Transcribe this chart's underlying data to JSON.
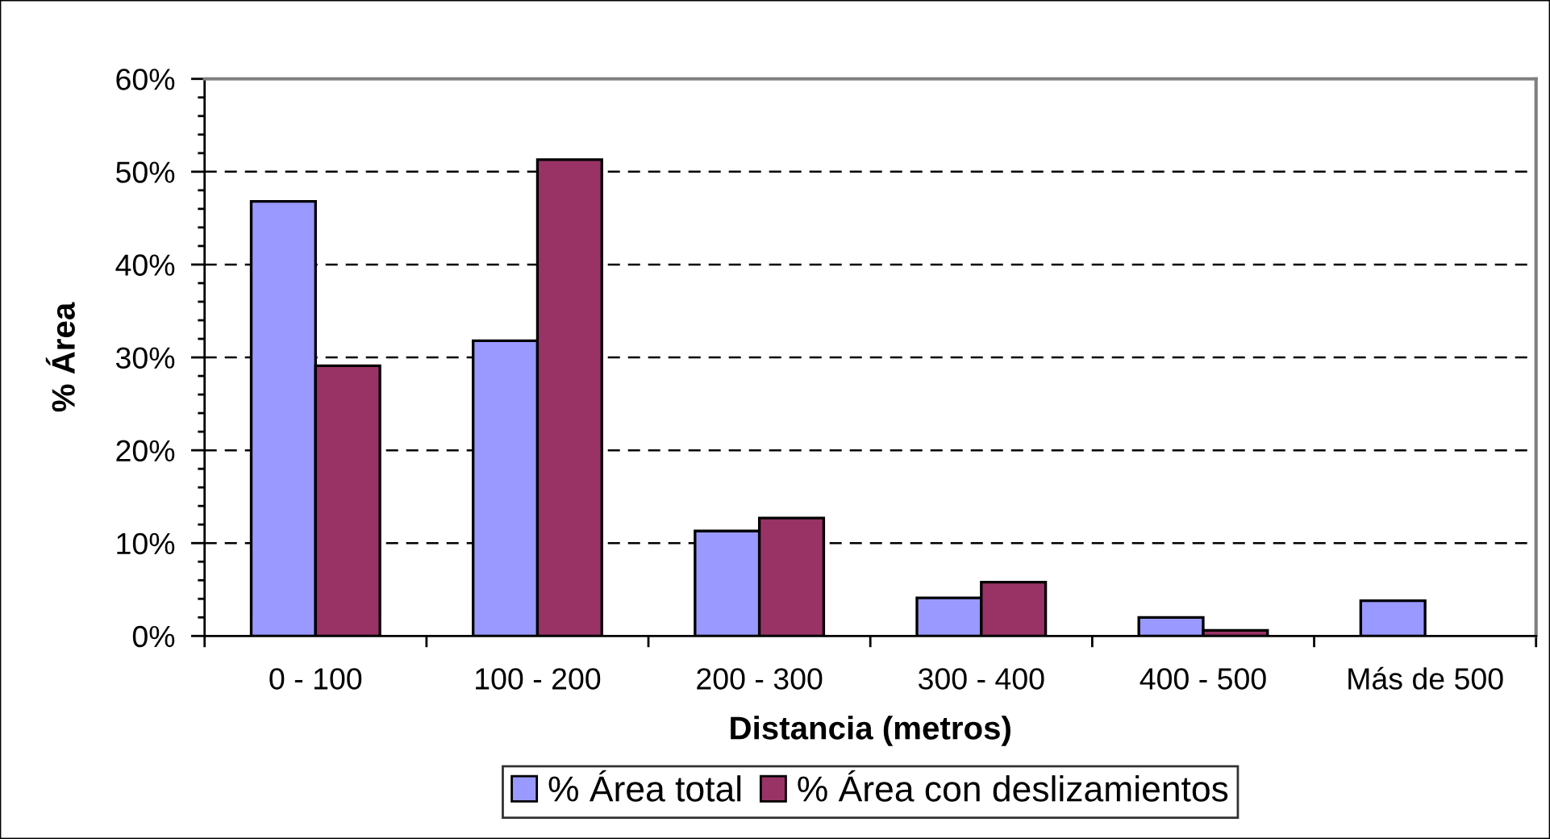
{
  "chart_data": {
    "type": "bar",
    "xlabel": "Distancia (metros)",
    "ylabel": "% Área",
    "categories": [
      "0 - 100",
      "100 - 200",
      "200 - 300",
      "300 - 400",
      "400 - 500",
      "Más de 500"
    ],
    "series": [
      {
        "name": "% Área total",
        "color": "#9999ff",
        "values": [
          46.8,
          31.8,
          11.3,
          4.1,
          2.0,
          3.8
        ]
      },
      {
        "name": "% Área con deslizamientos",
        "color": "#993366",
        "values": [
          29.1,
          51.3,
          12.7,
          5.8,
          0.6,
          null
        ]
      }
    ],
    "ylim": [
      0,
      60
    ],
    "yticks": [
      {
        "value": 0,
        "label": "0%"
      },
      {
        "value": 10,
        "label": "10%"
      },
      {
        "value": 20,
        "label": "20%"
      },
      {
        "value": 30,
        "label": "30%"
      },
      {
        "value": 40,
        "label": "40%"
      },
      {
        "value": 50,
        "label": "50%"
      },
      {
        "value": 60,
        "label": "60%"
      }
    ],
    "grid": "y",
    "legend": "bottom"
  }
}
